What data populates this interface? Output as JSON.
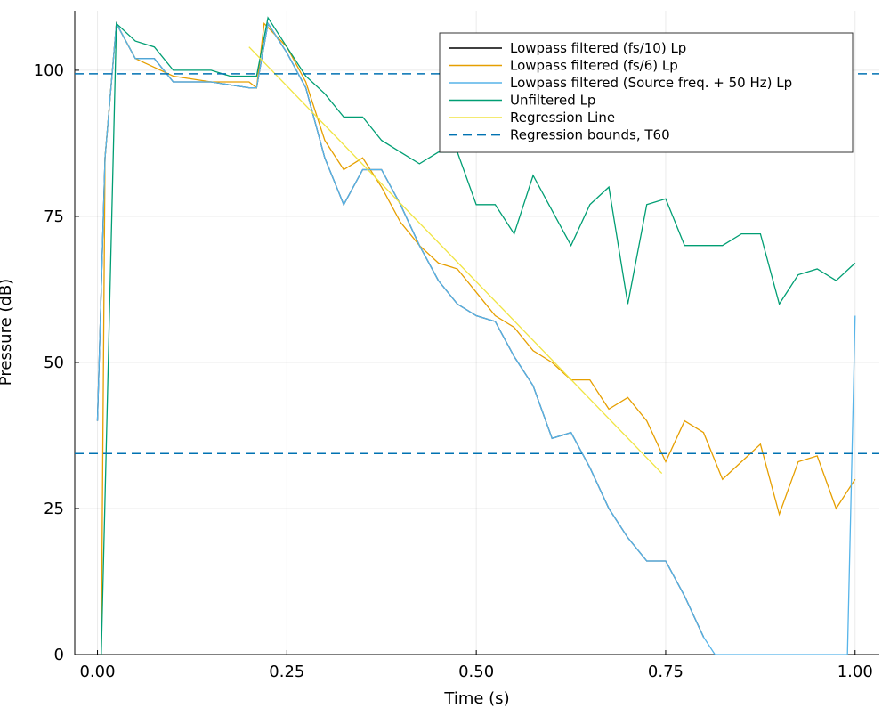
{
  "chart_data": {
    "type": "line",
    "xlabel": "Time (s)",
    "ylabel": "Pressure (dB)",
    "xlim": [
      -0.03,
      1.032
    ],
    "ylim": [
      0,
      110.2
    ],
    "xticks": [
      {
        "value": 0,
        "label": "0.00"
      },
      {
        "value": 0.25,
        "label": "0.25"
      },
      {
        "value": 0.5,
        "label": "0.50"
      },
      {
        "value": 0.75,
        "label": "0.75"
      },
      {
        "value": 1,
        "label": "1.00"
      }
    ],
    "yticks": [
      0,
      25,
      50,
      75,
      100
    ],
    "grid": true,
    "legend": "top-right",
    "series": [
      {
        "name": "Lowpass filtered (fs/10) Lp",
        "color": "#000000",
        "x": [
          0,
          0.01,
          0.025,
          0.05,
          0.075,
          0.1,
          0.15,
          0.2,
          0.21,
          0.225,
          0.25,
          0.275,
          0.3,
          0.325,
          0.35,
          0.375,
          0.4,
          0.425,
          0.45,
          0.475,
          0.5,
          0.525,
          0.55,
          0.575,
          0.6,
          0.625,
          0.65,
          0.675,
          0.7,
          0.725,
          0.75,
          0.775,
          0.8
        ],
        "values": [
          40,
          85,
          108,
          102,
          102,
          98,
          98,
          97,
          97,
          108,
          103,
          97,
          85,
          77,
          83,
          83,
          77,
          70,
          64,
          60,
          58,
          57,
          51,
          46,
          37,
          38,
          32,
          25,
          20,
          16,
          16,
          10,
          3
        ]
      },
      {
        "name": "Lowpass filtered (fs/6) Lp",
        "color": "#e69f00",
        "x": [
          0.005,
          0.01,
          0.025,
          0.05,
          0.1,
          0.15,
          0.2,
          0.21,
          0.22,
          0.25,
          0.275,
          0.3,
          0.325,
          0.35,
          0.375,
          0.4,
          0.425,
          0.45,
          0.475,
          0.5,
          0.525,
          0.55,
          0.575,
          0.6,
          0.625,
          0.65,
          0.675,
          0.7,
          0.725,
          0.75,
          0.775,
          0.8,
          0.825,
          0.85,
          0.875,
          0.9,
          0.925,
          0.95,
          0.975,
          1.0
        ],
        "values": [
          0,
          85,
          108,
          102,
          99,
          98,
          98,
          97,
          108,
          104,
          98,
          88,
          83,
          85,
          80,
          74,
          70,
          67,
          66,
          62,
          58,
          56,
          52,
          50,
          47,
          47,
          42,
          44,
          40,
          33,
          40,
          38,
          30,
          33,
          36,
          24,
          33,
          34,
          25,
          30
        ]
      },
      {
        "name": "Lowpass filtered (Source freq. + 50 Hz) Lp",
        "color": "#56b4e9",
        "x": [
          0,
          0.01,
          0.025,
          0.05,
          0.075,
          0.1,
          0.15,
          0.2,
          0.21,
          0.225,
          0.25,
          0.275,
          0.3,
          0.325,
          0.35,
          0.375,
          0.4,
          0.425,
          0.45,
          0.475,
          0.5,
          0.525,
          0.55,
          0.575,
          0.6,
          0.625,
          0.65,
          0.675,
          0.7,
          0.725,
          0.75,
          0.775,
          0.8,
          0.815,
          0.99,
          1.0
        ],
        "values": [
          40,
          85,
          108,
          102,
          102,
          98,
          98,
          97,
          97,
          108,
          103,
          97,
          85,
          77,
          83,
          83,
          77,
          70,
          64,
          60,
          58,
          57,
          51,
          46,
          37,
          38,
          32,
          25,
          20,
          16,
          16,
          10,
          3,
          0,
          0,
          58
        ]
      },
      {
        "name": "Unfiltered Lp",
        "color": "#009e73",
        "x": [
          0.005,
          0.025,
          0.05,
          0.075,
          0.1,
          0.125,
          0.15,
          0.175,
          0.2,
          0.21,
          0.225,
          0.25,
          0.275,
          0.3,
          0.325,
          0.35,
          0.375,
          0.4,
          0.425,
          0.45,
          0.475,
          0.5,
          0.525,
          0.55,
          0.575,
          0.6,
          0.625,
          0.65,
          0.675,
          0.7,
          0.725,
          0.75,
          0.775,
          0.8,
          0.825,
          0.85,
          0.875,
          0.9,
          0.925,
          0.95,
          0.975,
          1.0
        ],
        "values": [
          0,
          108,
          105,
          104,
          100,
          100,
          100,
          99,
          99,
          99,
          109,
          104,
          99,
          96,
          92,
          92,
          88,
          86,
          84,
          86,
          86,
          77,
          77,
          72,
          82,
          76,
          70,
          77,
          80,
          60,
          77,
          78,
          70,
          70,
          70,
          72,
          72,
          60,
          65,
          66,
          64,
          67
        ]
      },
      {
        "name": "Regression Line",
        "color": "#f0e442",
        "x": [
          0.2,
          0.745
        ],
        "values": [
          104,
          31
        ]
      },
      {
        "name": "Regression bounds, T60",
        "color": "#0072b2",
        "dashed": true,
        "hlines": [
          99.4,
          34.4
        ]
      }
    ]
  }
}
